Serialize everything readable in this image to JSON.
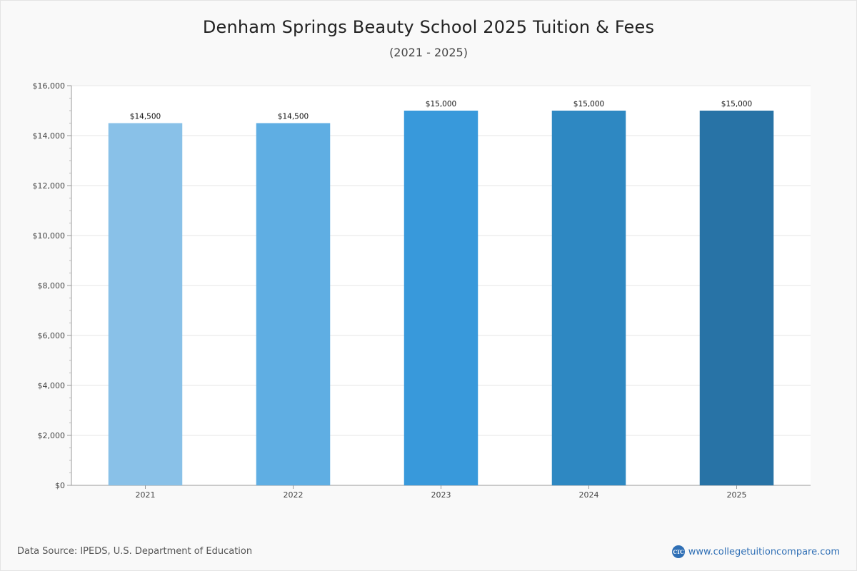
{
  "header": {
    "title": "Denham Springs Beauty School 2025 Tuition & Fees",
    "subtitle": "(2021 - 2025)"
  },
  "footer": {
    "source": "Data Source: IPEDS, U.S. Department of Education",
    "brand_logo_text": "CTC",
    "brand_url": "www.collegetuitioncompare.com"
  },
  "chart_data": {
    "type": "bar",
    "categories": [
      "2021",
      "2022",
      "2023",
      "2024",
      "2025"
    ],
    "values": [
      14500,
      14500,
      15000,
      15000,
      15000
    ],
    "value_labels": [
      "$14,500",
      "$14,500",
      "$15,000",
      "$15,000",
      "$15,000"
    ],
    "bar_colors": [
      "#89c1e8",
      "#5faee3",
      "#3899db",
      "#2e88c2",
      "#2873a6"
    ],
    "title": "Denham Springs Beauty School 2025 Tuition & Fees",
    "subtitle": "(2021 - 2025)",
    "xlabel": "",
    "ylabel": "",
    "ylim": [
      0,
      16000
    ],
    "yticks": [
      0,
      2000,
      4000,
      6000,
      8000,
      10000,
      12000,
      14000,
      16000
    ],
    "ytick_labels": [
      "$0",
      "$2,000",
      "$4,000",
      "$6,000",
      "$8,000",
      "$10,000",
      "$12,000",
      "$14,000",
      "$16,000"
    ],
    "grid": true,
    "legend": "none"
  }
}
